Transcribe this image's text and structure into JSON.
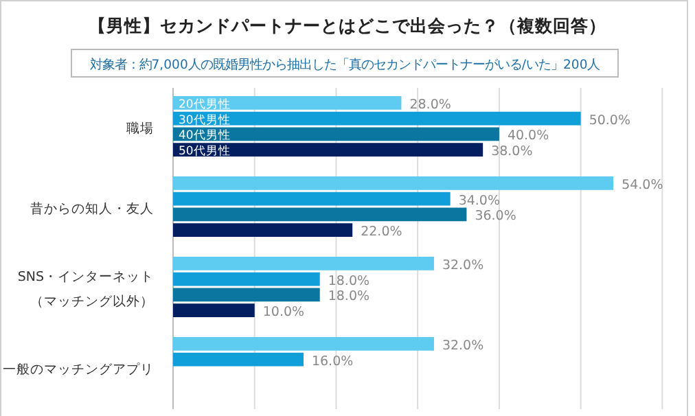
{
  "chart_data": {
    "type": "bar",
    "orientation": "horizontal",
    "title": "【男性】セカンドパートナーとはどこで出会った？（複数回答）",
    "subtitle": "対象者：約7,000人の既婚男性から抽出した「真のセカンドパートナーがいる/いた」200人",
    "categories": [
      "職場",
      "昔からの知人・友人",
      "SNS・インターネット（マッチング以外）",
      "一般のマッチングアプリ"
    ],
    "series": [
      {
        "name": "20代男性",
        "color": "#5ecbf0",
        "values": [
          28,
          54,
          32,
          32
        ],
        "value_labels": [
          "28.0%",
          "54.0%",
          "32.0%",
          "32.0%"
        ]
      },
      {
        "name": "30代男性",
        "color": "#109fd8",
        "values": [
          50,
          34,
          18,
          16
        ],
        "value_labels": [
          "50.0%",
          "34.0%",
          "18.0%",
          "16.0%"
        ]
      },
      {
        "name": "40代男性",
        "color": "#0b77a0",
        "values": [
          40,
          36,
          18,
          null
        ],
        "value_labels": [
          "40.0%",
          "36.0%",
          "18.0%",
          null
        ]
      },
      {
        "name": "50代男性",
        "color": "#041f5f",
        "values": [
          38,
          22,
          10,
          null
        ],
        "value_labels": [
          "38.0%",
          "22.0%",
          "10.0%",
          null
        ]
      }
    ],
    "xlim": [
      0,
      63
    ],
    "xticks": [
      {
        "value": 0,
        "label": null
      },
      {
        "value": 10,
        "label": null
      },
      {
        "value": 20,
        "label": null
      },
      {
        "value": 30,
        "label": null
      },
      {
        "value": 40,
        "label": null
      },
      {
        "value": 50,
        "label": null
      },
      {
        "value": 60,
        "label": null
      }
    ],
    "grid": "x",
    "tick_labels": "y"
  }
}
